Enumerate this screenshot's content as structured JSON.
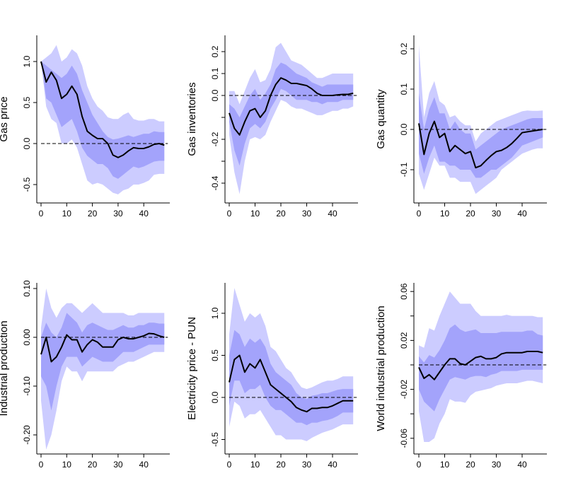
{
  "chart_data": [
    {
      "type": "area",
      "ylabel": "Gas price",
      "x": [
        0,
        2,
        4,
        6,
        8,
        10,
        12,
        14,
        16,
        18,
        20,
        22,
        24,
        26,
        28,
        30,
        32,
        34,
        36,
        38,
        40,
        42,
        44,
        46,
        48
      ],
      "xticks": [
        0,
        10,
        20,
        30,
        40
      ],
      "yticks": [
        {
          "v": -0.5,
          "label": "-0.5"
        },
        {
          "v": 0,
          "label": "0.0"
        },
        {
          "v": 0.5,
          "label": "0.5"
        },
        {
          "v": 1.0,
          "label": "1.0"
        }
      ],
      "ylim": [
        -0.7,
        1.3
      ],
      "mean": [
        1.0,
        0.75,
        0.87,
        0.77,
        0.55,
        0.6,
        0.7,
        0.6,
        0.33,
        0.15,
        0.1,
        0.06,
        0.06,
        0.0,
        -0.14,
        -0.17,
        -0.14,
        -0.09,
        -0.05,
        -0.06,
        -0.06,
        -0.04,
        -0.01,
        0.0,
        -0.02
      ],
      "inner_upper": [
        1.0,
        0.95,
        0.9,
        0.85,
        0.8,
        0.85,
        0.95,
        0.85,
        0.65,
        0.5,
        0.35,
        0.25,
        0.15,
        0.08,
        0.05,
        0.06,
        0.08,
        0.1,
        0.08,
        0.1,
        0.12,
        0.12,
        0.15,
        0.14,
        0.14
      ],
      "inner_lower": [
        1.0,
        0.55,
        0.5,
        0.35,
        0.2,
        0.25,
        0.3,
        0.15,
        -0.05,
        -0.15,
        -0.2,
        -0.25,
        -0.25,
        -0.3,
        -0.4,
        -0.43,
        -0.38,
        -0.33,
        -0.28,
        -0.3,
        -0.28,
        -0.25,
        -0.22,
        -0.21,
        -0.21
      ],
      "outer_upper": [
        1.0,
        1.05,
        1.1,
        1.2,
        1.0,
        1.05,
        1.15,
        1.1,
        0.95,
        0.7,
        0.55,
        0.45,
        0.4,
        0.32,
        0.3,
        0.3,
        0.35,
        0.38,
        0.3,
        0.28,
        0.28,
        0.3,
        0.3,
        0.27,
        0.27
      ],
      "outer_lower": [
        1.0,
        0.45,
        0.3,
        0.25,
        0.0,
        0.0,
        0.05,
        -0.05,
        -0.25,
        -0.45,
        -0.5,
        -0.48,
        -0.5,
        -0.55,
        -0.6,
        -0.62,
        -0.57,
        -0.55,
        -0.5,
        -0.5,
        -0.48,
        -0.45,
        -0.38,
        -0.37,
        -0.37
      ]
    },
    {
      "type": "area",
      "ylabel": "Gas inventories",
      "x": [
        0,
        2,
        4,
        6,
        8,
        10,
        12,
        14,
        16,
        18,
        20,
        22,
        24,
        26,
        28,
        30,
        32,
        34,
        36,
        38,
        40,
        42,
        44,
        46,
        48
      ],
      "xticks": [
        0,
        10,
        20,
        30,
        40
      ],
      "yticks": [
        {
          "v": -0.4,
          "label": "-0.4"
        },
        {
          "v": -0.3,
          "label": ""
        },
        {
          "v": -0.2,
          "label": "-0.2"
        },
        {
          "v": -0.1,
          "label": ""
        },
        {
          "v": 0,
          "label": "0.0"
        },
        {
          "v": 0.1,
          "label": "0.1"
        },
        {
          "v": 0.2,
          "label": "0.2"
        }
      ],
      "ylim": [
        -0.48,
        0.25
      ],
      "mean": [
        -0.08,
        -0.15,
        -0.18,
        -0.12,
        -0.07,
        -0.06,
        -0.1,
        -0.07,
        0.0,
        0.05,
        0.08,
        0.07,
        0.055,
        0.055,
        0.05,
        0.045,
        0.03,
        0.01,
        0.0,
        0.0,
        0.0,
        0.003,
        0.005,
        0.005,
        0.01
      ],
      "inner_upper": [
        -0.04,
        -0.06,
        -0.1,
        -0.05,
        0.0,
        0.03,
        -0.02,
        0.01,
        0.05,
        0.12,
        0.15,
        0.14,
        0.12,
        0.1,
        0.09,
        0.08,
        0.06,
        0.05,
        0.04,
        0.05,
        0.05,
        0.05,
        0.05,
        0.05,
        0.05
      ],
      "inner_lower": [
        -0.12,
        -0.25,
        -0.32,
        -0.22,
        -0.15,
        -0.13,
        -0.15,
        -0.12,
        -0.06,
        -0.02,
        0.03,
        0.02,
        0.0,
        -0.02,
        -0.02,
        -0.02,
        -0.03,
        -0.03,
        -0.04,
        -0.03,
        -0.03,
        -0.03,
        -0.02,
        -0.02,
        -0.02
      ],
      "outer_upper": [
        0.02,
        0.02,
        -0.04,
        0.02,
        0.08,
        0.12,
        0.06,
        0.07,
        0.12,
        0.22,
        0.24,
        0.2,
        0.16,
        0.15,
        0.14,
        0.12,
        0.1,
        0.08,
        0.08,
        0.09,
        0.1,
        0.1,
        0.1,
        0.1,
        0.1
      ],
      "outer_lower": [
        -0.18,
        -0.35,
        -0.45,
        -0.3,
        -0.2,
        -0.19,
        -0.2,
        -0.18,
        -0.12,
        -0.07,
        -0.02,
        -0.03,
        -0.05,
        -0.06,
        -0.06,
        -0.07,
        -0.08,
        -0.09,
        -0.09,
        -0.08,
        -0.07,
        -0.07,
        -0.06,
        -0.06,
        -0.05
      ]
    },
    {
      "type": "area",
      "ylabel": "Gas quantity",
      "x": [
        0,
        2,
        4,
        6,
        8,
        10,
        12,
        14,
        16,
        18,
        20,
        22,
        24,
        26,
        28,
        30,
        32,
        34,
        36,
        38,
        40,
        42,
        44,
        46,
        48
      ],
      "xticks": [
        0,
        10,
        20,
        30,
        40
      ],
      "yticks": [
        {
          "v": -0.1,
          "label": "-0.1"
        },
        {
          "v": 0,
          "label": "0.0"
        },
        {
          "v": 0.1,
          "label": "0.1"
        },
        {
          "v": 0.2,
          "label": "0.2"
        }
      ],
      "ylim": [
        -0.18,
        0.23
      ],
      "mean": [
        0.015,
        -0.062,
        -0.01,
        0.02,
        -0.02,
        -0.01,
        -0.055,
        -0.04,
        -0.05,
        -0.06,
        -0.055,
        -0.095,
        -0.09,
        -0.077,
        -0.065,
        -0.055,
        -0.052,
        -0.045,
        -0.035,
        -0.022,
        -0.008,
        -0.006,
        -0.004,
        -0.002,
        0.0
      ],
      "inner_upper": [
        0.09,
        0.0,
        0.05,
        0.08,
        0.04,
        0.04,
        0.0,
        0.02,
        0.0,
        -0.01,
        -0.01,
        -0.05,
        -0.04,
        -0.03,
        -0.02,
        -0.01,
        0.0,
        0.005,
        0.01,
        0.015,
        0.02,
        0.025,
        0.028,
        0.028,
        0.028
      ],
      "inner_lower": [
        -0.06,
        -0.11,
        -0.07,
        -0.04,
        -0.08,
        -0.08,
        -0.09,
        -0.09,
        -0.1,
        -0.1,
        -0.1,
        -0.12,
        -0.12,
        -0.11,
        -0.1,
        -0.1,
        -0.09,
        -0.08,
        -0.07,
        -0.055,
        -0.04,
        -0.035,
        -0.03,
        -0.025,
        -0.02
      ],
      "outer_upper": [
        0.21,
        0.03,
        0.09,
        0.12,
        0.07,
        0.06,
        0.03,
        0.035,
        0.02,
        0.01,
        0.01,
        -0.03,
        -0.01,
        0.0,
        0.01,
        0.02,
        0.025,
        0.03,
        0.035,
        0.04,
        0.045,
        0.047,
        0.046,
        0.046,
        0.047
      ],
      "outer_lower": [
        -0.11,
        -0.15,
        -0.11,
        -0.07,
        -0.09,
        -0.09,
        -0.12,
        -0.12,
        -0.13,
        -0.13,
        -0.13,
        -0.16,
        -0.15,
        -0.14,
        -0.13,
        -0.12,
        -0.1,
        -0.09,
        -0.08,
        -0.07,
        -0.06,
        -0.055,
        -0.05,
        -0.047,
        -0.047
      ]
    },
    {
      "type": "area",
      "ylabel": "Industrial production",
      "x": [
        0,
        2,
        4,
        6,
        8,
        10,
        12,
        14,
        16,
        18,
        20,
        22,
        24,
        26,
        28,
        30,
        32,
        34,
        36,
        38,
        40,
        42,
        44,
        46,
        48
      ],
      "xticks": [
        0,
        10,
        20,
        30,
        40
      ],
      "yticks": [
        {
          "v": -0.2,
          "label": "-0.20"
        },
        {
          "v": -0.1,
          "label": "-0.10"
        },
        {
          "v": 0,
          "label": "0.00"
        },
        {
          "v": 0.1,
          "label": "0.10"
        }
      ],
      "ylim": [
        -0.24,
        0.11
      ],
      "mean": [
        -0.035,
        0.0,
        -0.05,
        -0.04,
        -0.02,
        0.005,
        -0.005,
        -0.005,
        -0.03,
        -0.015,
        -0.005,
        -0.01,
        -0.02,
        -0.02,
        -0.02,
        -0.005,
        0.0,
        -0.003,
        -0.003,
        0.0,
        0.003,
        0.008,
        0.007,
        0.003,
        0.0
      ],
      "inner_upper": [
        0.0,
        0.03,
        0.01,
        0.0,
        0.02,
        0.05,
        0.04,
        0.03,
        0.01,
        0.025,
        0.03,
        0.025,
        0.02,
        0.015,
        0.015,
        0.02,
        0.025,
        0.02,
        0.02,
        0.025,
        0.025,
        0.03,
        0.03,
        0.028,
        0.028
      ],
      "inner_lower": [
        -0.08,
        -0.1,
        -0.15,
        -0.1,
        -0.06,
        -0.04,
        -0.04,
        -0.04,
        -0.06,
        -0.05,
        -0.04,
        -0.045,
        -0.05,
        -0.05,
        -0.05,
        -0.04,
        -0.03,
        -0.03,
        -0.03,
        -0.025,
        -0.02,
        -0.015,
        -0.015,
        -0.015,
        -0.015
      ],
      "outer_upper": [
        0.02,
        0.1,
        0.06,
        0.04,
        0.06,
        0.07,
        0.07,
        0.06,
        0.05,
        0.06,
        0.07,
        0.06,
        0.05,
        0.05,
        0.05,
        0.05,
        0.05,
        0.045,
        0.045,
        0.05,
        0.05,
        0.05,
        0.05,
        0.05,
        0.05
      ],
      "outer_lower": [
        -0.13,
        -0.23,
        -0.2,
        -0.15,
        -0.09,
        -0.06,
        -0.07,
        -0.07,
        -0.09,
        -0.07,
        -0.07,
        -0.07,
        -0.07,
        -0.07,
        -0.07,
        -0.06,
        -0.055,
        -0.05,
        -0.05,
        -0.045,
        -0.04,
        -0.035,
        -0.03,
        -0.03,
        -0.03
      ]
    },
    {
      "type": "area",
      "ylabel": "Electricity price - PUN",
      "x": [
        0,
        2,
        4,
        6,
        8,
        10,
        12,
        14,
        16,
        18,
        20,
        22,
        24,
        26,
        28,
        30,
        32,
        34,
        36,
        38,
        40,
        42,
        44,
        46,
        48
      ],
      "xticks": [
        0,
        10,
        20,
        30,
        40
      ],
      "yticks": [
        {
          "v": -0.5,
          "label": "-0.5"
        },
        {
          "v": 0,
          "label": "0.0"
        },
        {
          "v": 0.5,
          "label": "0.5"
        },
        {
          "v": 1.0,
          "label": "1.0"
        }
      ],
      "ylim": [
        -0.6,
        1.35
      ],
      "mean": [
        0.18,
        0.45,
        0.5,
        0.3,
        0.4,
        0.35,
        0.45,
        0.3,
        0.15,
        0.1,
        0.05,
        0.0,
        -0.05,
        -0.12,
        -0.15,
        -0.17,
        -0.13,
        -0.13,
        -0.12,
        -0.12,
        -0.1,
        -0.07,
        -0.04,
        -0.04,
        -0.04
      ],
      "inner_upper": [
        0.5,
        0.8,
        0.75,
        0.6,
        0.7,
        0.65,
        0.7,
        0.6,
        0.4,
        0.3,
        0.25,
        0.2,
        0.15,
        0.05,
        0.0,
        -0.02,
        0.02,
        0.03,
        0.05,
        0.05,
        0.07,
        0.09,
        0.1,
        0.1,
        0.1
      ],
      "inner_lower": [
        -0.1,
        0.2,
        0.2,
        0.05,
        0.1,
        0.1,
        0.15,
        0.0,
        -0.1,
        -0.15,
        -0.15,
        -0.2,
        -0.25,
        -0.3,
        -0.3,
        -0.33,
        -0.3,
        -0.3,
        -0.28,
        -0.27,
        -0.25,
        -0.22,
        -0.18,
        -0.18,
        -0.18
      ],
      "outer_upper": [
        0.75,
        1.3,
        1.1,
        0.9,
        1.0,
        0.95,
        1.0,
        0.85,
        0.6,
        0.55,
        0.45,
        0.35,
        0.3,
        0.2,
        0.12,
        0.1,
        0.12,
        0.15,
        0.18,
        0.2,
        0.2,
        0.22,
        0.25,
        0.25,
        0.25
      ],
      "outer_lower": [
        -0.35,
        -0.05,
        -0.1,
        -0.25,
        -0.2,
        -0.2,
        -0.15,
        -0.25,
        -0.35,
        -0.45,
        -0.45,
        -0.5,
        -0.5,
        -0.5,
        -0.5,
        -0.52,
        -0.48,
        -0.45,
        -0.42,
        -0.4,
        -0.38,
        -0.35,
        -0.32,
        -0.32,
        -0.32
      ]
    },
    {
      "type": "area",
      "ylabel": "World industrial production",
      "x": [
        0,
        2,
        4,
        6,
        8,
        10,
        12,
        14,
        16,
        18,
        20,
        22,
        24,
        26,
        28,
        30,
        32,
        34,
        36,
        38,
        40,
        42,
        44,
        46,
        48
      ],
      "xticks": [
        0,
        10,
        20,
        30,
        40
      ],
      "yticks": [
        {
          "v": -0.06,
          "label": "-0.06"
        },
        {
          "v": -0.04,
          "label": ""
        },
        {
          "v": -0.02,
          "label": "-0.02"
        },
        {
          "v": 0,
          "label": ""
        },
        {
          "v": 0.02,
          "label": "0.02"
        },
        {
          "v": 0.04,
          "label": ""
        },
        {
          "v": 0.06,
          "label": "0.06"
        }
      ],
      "ylim": [
        -0.068,
        0.066
      ],
      "mean": [
        -0.002,
        -0.011,
        -0.008,
        -0.012,
        -0.006,
        0.0,
        0.005,
        0.005,
        0.001,
        0.0,
        0.003,
        0.006,
        0.007,
        0.005,
        0.005,
        0.006,
        0.009,
        0.01,
        0.01,
        0.01,
        0.01,
        0.011,
        0.011,
        0.011,
        0.01
      ],
      "inner_upper": [
        0.007,
        0.002,
        0.008,
        0.006,
        0.012,
        0.02,
        0.03,
        0.033,
        0.029,
        0.027,
        0.028,
        0.029,
        0.026,
        0.026,
        0.026,
        0.026,
        0.027,
        0.027,
        0.027,
        0.027,
        0.027,
        0.028,
        0.028,
        0.025,
        0.024
      ],
      "inner_lower": [
        -0.02,
        -0.03,
        -0.034,
        -0.038,
        -0.028,
        -0.02,
        -0.012,
        -0.01,
        -0.011,
        -0.012,
        -0.01,
        -0.009,
        -0.009,
        -0.01,
        -0.008,
        -0.007,
        -0.005,
        -0.005,
        -0.005,
        -0.005,
        -0.004,
        -0.004,
        -0.004,
        -0.004,
        -0.004
      ],
      "outer_upper": [
        0.016,
        0.014,
        0.03,
        0.028,
        0.04,
        0.05,
        0.06,
        0.055,
        0.05,
        0.05,
        0.05,
        0.044,
        0.04,
        0.04,
        0.04,
        0.04,
        0.04,
        0.041,
        0.04,
        0.04,
        0.04,
        0.04,
        0.04,
        0.039,
        0.039
      ],
      "outer_lower": [
        -0.038,
        -0.063,
        -0.063,
        -0.06,
        -0.048,
        -0.04,
        -0.028,
        -0.03,
        -0.03,
        -0.031,
        -0.025,
        -0.022,
        -0.021,
        -0.02,
        -0.019,
        -0.017,
        -0.016,
        -0.015,
        -0.015,
        -0.015,
        -0.014,
        -0.013,
        -0.013,
        -0.014,
        -0.015
      ]
    }
  ],
  "colors": {
    "outer_band": "#ccccff",
    "inner_band": "#a3a3fb",
    "line": "#000000"
  }
}
